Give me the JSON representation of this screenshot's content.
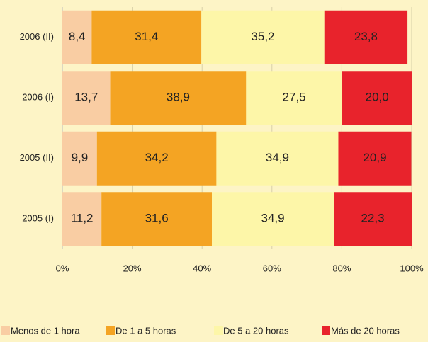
{
  "chart_data": {
    "type": "stacked-bar-horizontal",
    "categories": [
      "2006 (II)",
      "2006 (I)",
      "2005 (II)",
      "2005 (I)"
    ],
    "series": [
      {
        "name": "Menos de 1 hora",
        "color": "#f9cda3",
        "values": [
          8.4,
          13.7,
          9.9,
          11.2
        ],
        "value_labels": [
          "8,4",
          "13,7",
          "9,9",
          "11,2"
        ]
      },
      {
        "name": "De 1 a 5 horas",
        "color": "#f4a423",
        "values": [
          31.4,
          38.9,
          34.2,
          31.6
        ],
        "value_labels": [
          "31,4",
          "38,9",
          "34,2",
          "31,6"
        ]
      },
      {
        "name": "De 5 a 20 horas",
        "color": "#fdf6a8",
        "values": [
          35.2,
          27.5,
          34.9,
          34.9
        ],
        "value_labels": [
          "35,2",
          "27,5",
          "34,9",
          "34,9"
        ]
      },
      {
        "name": "Más de 20 horas",
        "color": "#e8232c",
        "values": [
          23.8,
          20.0,
          20.9,
          22.3
        ],
        "value_labels": [
          "23,8",
          "20,0",
          "20,9",
          "22,3"
        ]
      }
    ],
    "xlim": [
      0,
      100
    ],
    "xticks": [
      {
        "value": 0,
        "label": "0%"
      },
      {
        "value": 20,
        "label": "20%"
      },
      {
        "value": 40,
        "label": "40%"
      },
      {
        "value": 60,
        "label": "60%"
      },
      {
        "value": 80,
        "label": "80%"
      },
      {
        "value": 100,
        "label": "100%"
      }
    ],
    "grid": true,
    "legend": "bottom"
  }
}
